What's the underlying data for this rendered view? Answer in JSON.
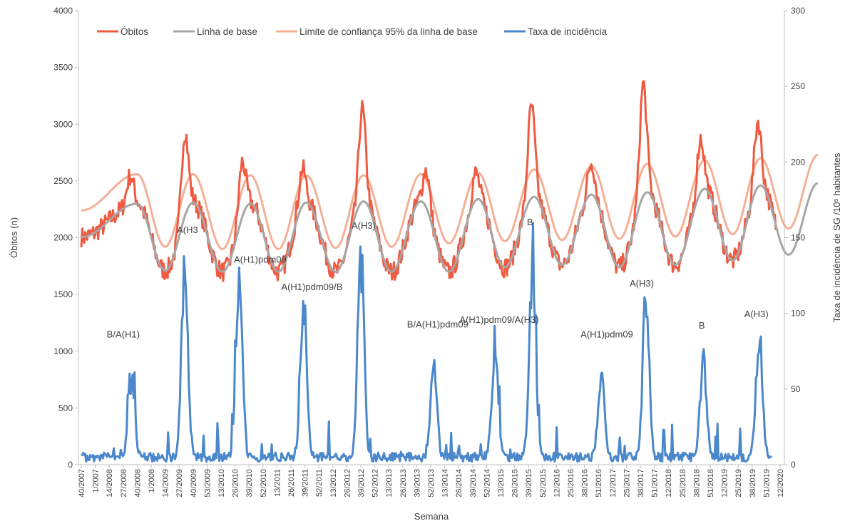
{
  "chart_data": {
    "type": "line",
    "xlabel": "Semana",
    "ylabel_left": "Óbitos (n)",
    "ylabel_right": "Taxa de incidência de SG /10⁵ habitantes",
    "y_left_range": [
      0,
      4000
    ],
    "y_left_ticks": [
      "0",
      "500",
      "1000",
      "1500",
      "2000",
      "2500",
      "3000",
      "3500",
      "4000"
    ],
    "y_right_range": [
      0,
      300
    ],
    "y_right_ticks": [
      "0",
      "50",
      "100",
      "150",
      "200",
      "250",
      "300"
    ],
    "x_tick_labels": [
      "40/2007",
      "1/2007",
      "14/2008",
      "27/2008",
      "40/2008",
      "1/2008",
      "14/2009",
      "27/2009",
      "40/2009",
      "53/2009",
      "13/2010",
      "26/2010",
      "39/2010",
      "52/2010",
      "13/2011",
      "26/2011",
      "39/2011",
      "52/2011",
      "13/2012",
      "26/2012",
      "39/2012",
      "52/2012",
      "13/2013",
      "26/2013",
      "39/2013",
      "52/2013",
      "13/2014",
      "26/2014",
      "39/2014",
      "52/2014",
      "13/2015",
      "26/2015",
      "39/2015",
      "52/2015",
      "12/2016",
      "25/2016",
      "38/2016",
      "51/2016",
      "12/2017",
      "25/2017",
      "38/2017",
      "51/2017",
      "12/2018",
      "25/2018",
      "38/2018",
      "51/2018",
      "12/2019",
      "25/2019",
      "38/2019",
      "51/2019",
      "12/2020"
    ],
    "grid": false,
    "legend_position": "top",
    "colors": {
      "obitos": "#F05A40",
      "baseline": "#A6A6A6",
      "limit": "#F4B096",
      "incidence": "#4A87CB"
    },
    "series": [
      {
        "name": "Óbitos",
        "axis": "left",
        "peaks": [
          {
            "x": 3.5,
            "y": 2560
          },
          {
            "x": 7.4,
            "y": 2970
          },
          {
            "x": 11.5,
            "y": 2690
          },
          {
            "x": 15.8,
            "y": 2620
          },
          {
            "x": 20.1,
            "y": 3180
          },
          {
            "x": 24.7,
            "y": 2610
          },
          {
            "x": 28.2,
            "y": 2580
          },
          {
            "x": 32.2,
            "y": 3200
          },
          {
            "x": 36.5,
            "y": 2680
          },
          {
            "x": 40.2,
            "y": 3410
          },
          {
            "x": 44.3,
            "y": 2900
          },
          {
            "x": 48.4,
            "y": 3060
          }
        ]
      },
      {
        "name": "Linha de base",
        "axis": "left",
        "peaks": [
          {
            "x": 4.0,
            "y": 2300
          },
          {
            "x": 8.0,
            "y": 2310
          },
          {
            "x": 12.1,
            "y": 2300
          },
          {
            "x": 16.1,
            "y": 2310
          },
          {
            "x": 20.2,
            "y": 2320
          },
          {
            "x": 24.3,
            "y": 2320
          },
          {
            "x": 28.4,
            "y": 2340
          },
          {
            "x": 32.4,
            "y": 2360
          },
          {
            "x": 36.5,
            "y": 2380
          },
          {
            "x": 40.5,
            "y": 2400
          },
          {
            "x": 44.6,
            "y": 2430
          },
          {
            "x": 48.6,
            "y": 2460
          },
          {
            "x": 52.7,
            "y": 2480
          }
        ],
        "troughs": [
          {
            "x": 6.0,
            "y": 1710
          },
          {
            "x": 10.1,
            "y": 1700
          },
          {
            "x": 14.1,
            "y": 1700
          },
          {
            "x": 18.2,
            "y": 1700
          },
          {
            "x": 22.2,
            "y": 1700
          },
          {
            "x": 26.3,
            "y": 1700
          },
          {
            "x": 30.3,
            "y": 1740
          },
          {
            "x": 34.4,
            "y": 1760
          },
          {
            "x": 38.5,
            "y": 1740
          },
          {
            "x": 42.5,
            "y": 1760
          },
          {
            "x": 46.6,
            "y": 1800
          },
          {
            "x": 50.6,
            "y": 1850
          }
        ]
      },
      {
        "name": "Limite de confiança 95% da linha de base",
        "axis": "left",
        "peaks": [
          {
            "x": 4.0,
            "y": 2560
          },
          {
            "x": 8.0,
            "y": 2560
          },
          {
            "x": 12.1,
            "y": 2550
          },
          {
            "x": 16.1,
            "y": 2550
          },
          {
            "x": 20.2,
            "y": 2550
          },
          {
            "x": 24.3,
            "y": 2560
          },
          {
            "x": 28.4,
            "y": 2570
          },
          {
            "x": 32.4,
            "y": 2600
          },
          {
            "x": 36.5,
            "y": 2630
          },
          {
            "x": 40.5,
            "y": 2650
          },
          {
            "x": 44.6,
            "y": 2680
          },
          {
            "x": 48.6,
            "y": 2700
          },
          {
            "x": 52.7,
            "y": 2730
          }
        ],
        "troughs": [
          {
            "x": 6.0,
            "y": 1920
          },
          {
            "x": 10.1,
            "y": 1900
          },
          {
            "x": 14.1,
            "y": 1900
          },
          {
            "x": 18.2,
            "y": 1910
          },
          {
            "x": 22.2,
            "y": 1920
          },
          {
            "x": 26.3,
            "y": 1950
          },
          {
            "x": 30.3,
            "y": 1970
          },
          {
            "x": 34.4,
            "y": 1980
          },
          {
            "x": 38.5,
            "y": 1990
          },
          {
            "x": 42.5,
            "y": 2010
          },
          {
            "x": 46.6,
            "y": 2030
          },
          {
            "x": 50.6,
            "y": 2080
          }
        ]
      },
      {
        "name": "Taxa de incidência",
        "axis": "right",
        "peaks": [
          {
            "x": 3.6,
            "y": 61
          },
          {
            "x": 7.4,
            "y": 142
          },
          {
            "x": 11.3,
            "y": 135
          },
          {
            "x": 15.9,
            "y": 110
          },
          {
            "x": 20.0,
            "y": 148
          },
          {
            "x": 25.2,
            "y": 70
          },
          {
            "x": 29.6,
            "y": 81
          },
          {
            "x": 32.3,
            "y": 148
          },
          {
            "x": 37.2,
            "y": 60
          },
          {
            "x": 40.4,
            "y": 113
          },
          {
            "x": 44.5,
            "y": 70
          },
          {
            "x": 48.5,
            "y": 90
          }
        ]
      }
    ],
    "annotations": [
      {
        "text": "B/A(H1)",
        "x": 3.0,
        "y": 1120
      },
      {
        "text": "A(H3",
        "x": 7.6,
        "y": 2040
      },
      {
        "text": "A(H1)pdm09",
        "x": 12.8,
        "y": 1780
      },
      {
        "text": "A(H1)pdm09/B",
        "x": 16.5,
        "y": 1540
      },
      {
        "text": "A(H3)",
        "x": 20.2,
        "y": 2080
      },
      {
        "text": "B/A(H1)pdm09",
        "x": 25.5,
        "y": 1210
      },
      {
        "text": "A(H1)pdm09/A(H3)",
        "x": 29.9,
        "y": 1250
      },
      {
        "text": "B",
        "x": 32.1,
        "y": 2110
      },
      {
        "text": "A(H1)pdm09",
        "x": 37.6,
        "y": 1120
      },
      {
        "text": "A(H3)",
        "x": 40.1,
        "y": 1570
      },
      {
        "text": "B",
        "x": 44.4,
        "y": 1200
      },
      {
        "text": "A(H3)",
        "x": 48.3,
        "y": 1300
      }
    ]
  }
}
